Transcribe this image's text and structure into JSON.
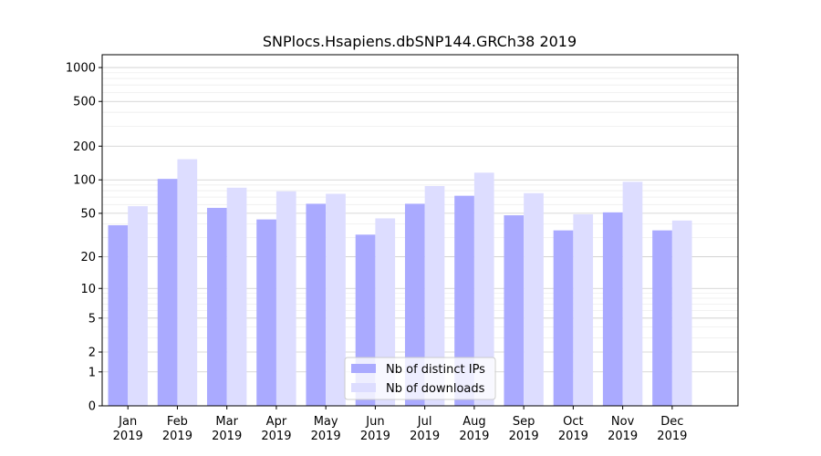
{
  "chart_data": {
    "type": "bar",
    "title": "SNPlocs.Hsapiens.dbSNP144.GRCh38 2019",
    "xlabel": "",
    "ylabel": "",
    "categories": [
      "Jan\n2019",
      "Feb\n2019",
      "Mar\n2019",
      "Apr\n2019",
      "May\n2019",
      "Jun\n2019",
      "Jul\n2019",
      "Aug\n2019",
      "Sep\n2019",
      "Oct\n2019",
      "Nov\n2019",
      "Dec\n2019"
    ],
    "series": [
      {
        "name": "Nb of distinct IPs",
        "color": "#aaaaff",
        "values": [
          39,
          102,
          56,
          44,
          61,
          32,
          61,
          72,
          48,
          35,
          51,
          35
        ]
      },
      {
        "name": "Nb of downloads",
        "color": "#ddddff",
        "values": [
          58,
          153,
          85,
          79,
          75,
          45,
          88,
          116,
          76,
          49,
          96,
          43
        ]
      }
    ],
    "yscale": "log1p",
    "ylim": [
      0,
      1300
    ],
    "yticks": [
      0,
      1,
      2,
      5,
      10,
      20,
      50,
      100,
      200,
      500,
      1000
    ],
    "grid": true,
    "legend_position": "lower center"
  }
}
